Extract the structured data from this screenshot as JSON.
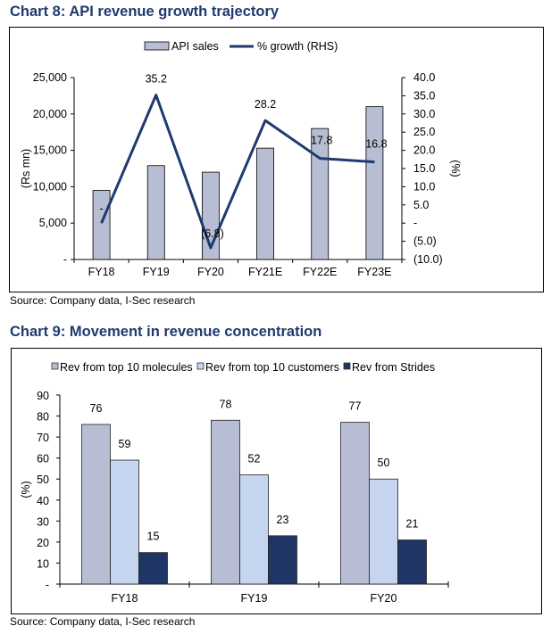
{
  "chart_data": [
    {
      "type": "bar",
      "title": "Chart 8: API revenue growth trajectory",
      "source": "Source: Company data, I-Sec research",
      "categories": [
        "FY18",
        "FY19",
        "FY20",
        "FY21E",
        "FY22E",
        "FY23E"
      ],
      "series": [
        {
          "name": "API sales",
          "type": "bar",
          "axis": "left",
          "color": "#b7bdd3",
          "values": [
            9500,
            12900,
            12000,
            15300,
            18000,
            21000
          ]
        },
        {
          "name": "% growth (RHS)",
          "type": "line",
          "axis": "right",
          "color": "#1f3a6e",
          "values": [
            0,
            35.2,
            -6.8,
            28.2,
            17.8,
            16.8
          ],
          "labels": [
            "-",
            "35.2",
            "(6.8)",
            "28.2",
            "17.8",
            "16.8"
          ]
        }
      ],
      "ylabel": "(Rs mn)",
      "ylim": [
        0,
        25000
      ],
      "yticks": [
        "-",
        "5,000",
        "10,000",
        "15,000",
        "20,000",
        "25,000"
      ],
      "y2label": "(%)",
      "y2lim": [
        -10,
        40
      ],
      "y2ticks": [
        "(10.0)",
        "(5.0)",
        "-",
        "5.0",
        "10.0",
        "15.0",
        "20.0",
        "25.0",
        "30.0",
        "35.0",
        "40.0"
      ],
      "legend": "top",
      "grid": false
    },
    {
      "type": "bar",
      "title": "Chart 9: Movement in revenue concentration",
      "source": "Source: Company data, I-Sec research",
      "categories": [
        "FY18",
        "FY19",
        "FY20"
      ],
      "series": [
        {
          "name": "Rev from top 10 molecules",
          "color": "#b7bdd3",
          "values": [
            76,
            78,
            77
          ]
        },
        {
          "name": "Rev from top 10 customers",
          "color": "#c5d5ef",
          "values": [
            59,
            52,
            50
          ]
        },
        {
          "name": "Rev from Strides",
          "color": "#1f3566",
          "values": [
            15,
            23,
            21
          ]
        }
      ],
      "ylabel": "(%)",
      "ylim": [
        0,
        90
      ],
      "yticks": [
        "-",
        "10",
        "20",
        "30",
        "40",
        "50",
        "60",
        "70",
        "80",
        "90"
      ],
      "legend": "top",
      "grid": false
    }
  ]
}
